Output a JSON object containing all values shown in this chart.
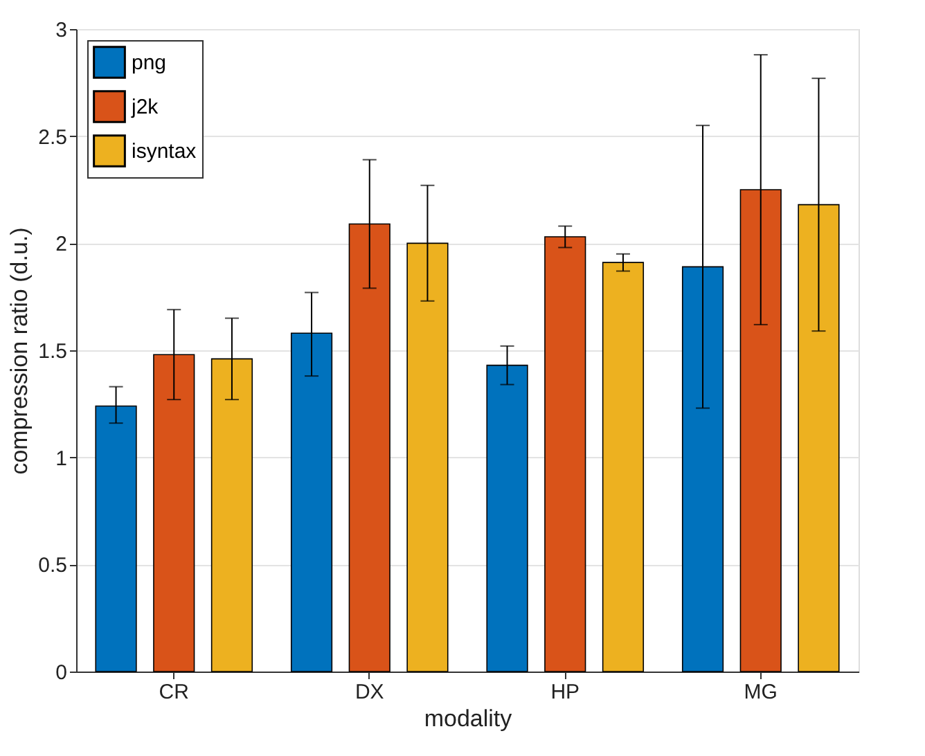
{
  "chart_data": {
    "type": "bar",
    "xlabel": "modality",
    "ylabel": "compression ratio (d.u.)",
    "categories": [
      "CR",
      "DX",
      "HP",
      "MG"
    ],
    "series": [
      {
        "name": "png",
        "color": "#0072bd",
        "values": [
          1.24,
          1.58,
          1.43,
          1.89
        ],
        "errors": [
          [
            1.16,
            1.33
          ],
          [
            1.38,
            1.77
          ],
          [
            1.34,
            1.52
          ],
          [
            1.23,
            2.55
          ]
        ]
      },
      {
        "name": "j2k",
        "color": "#d95319",
        "values": [
          1.48,
          2.09,
          2.03,
          2.25
        ],
        "errors": [
          [
            1.27,
            1.69
          ],
          [
            1.79,
            2.39
          ],
          [
            1.98,
            2.08
          ],
          [
            1.62,
            2.88
          ]
        ]
      },
      {
        "name": "isyntax",
        "color": "#edb120",
        "values": [
          1.46,
          2.0,
          1.91,
          2.18
        ],
        "errors": [
          [
            1.27,
            1.65
          ],
          [
            1.73,
            2.27
          ],
          [
            1.87,
            1.95
          ],
          [
            1.59,
            2.77
          ]
        ]
      }
    ],
    "ylim": [
      0,
      3
    ],
    "yticks": [
      0,
      0.5,
      1,
      1.5,
      2,
      2.5,
      3
    ],
    "grid": "y",
    "legend": "top left"
  }
}
